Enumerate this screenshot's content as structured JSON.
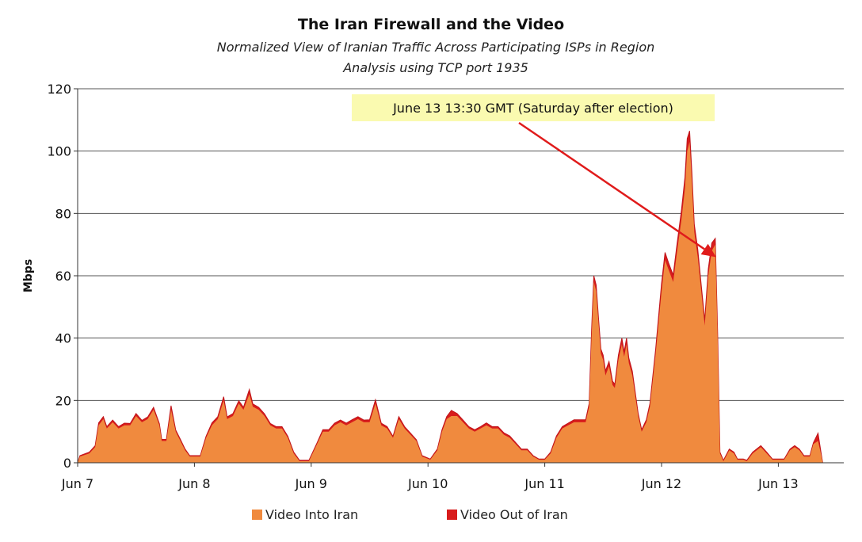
{
  "chart_data": {
    "type": "area",
    "title": "The Iran Firewall and the Video",
    "subtitle_lines": [
      "Normalized View of Iranian Traffic Across Participating ISPs in Region",
      "Analysis using TCP port 1935"
    ],
    "ylabel": "Mbps",
    "xlabel": "",
    "ylim": [
      0,
      120
    ],
    "yticks": [
      0,
      20,
      40,
      60,
      80,
      100,
      120
    ],
    "xlim": [
      7.0,
      13.38
    ],
    "xticks": [
      {
        "label": "Jun  7",
        "day": 7
      },
      {
        "label": "Jun  8",
        "day": 8
      },
      {
        "label": "Jun  9",
        "day": 9
      },
      {
        "label": "Jun 10",
        "day": 10
      },
      {
        "label": "Jun 11",
        "day": 11
      },
      {
        "label": "Jun 12",
        "day": 12
      },
      {
        "label": "Jun 13",
        "day": 13
      }
    ],
    "grid": true,
    "legend_position": "bottom",
    "series": [
      {
        "name": "Video Into Iran",
        "color": "#f08a3e",
        "points": [
          [
            7.0,
            0
          ],
          [
            7.02,
            2
          ],
          [
            7.1,
            3
          ],
          [
            7.15,
            5
          ],
          [
            7.18,
            12
          ],
          [
            7.22,
            14
          ],
          [
            7.25,
            11
          ],
          [
            7.3,
            13
          ],
          [
            7.35,
            11
          ],
          [
            7.4,
            12
          ],
          [
            7.45,
            12
          ],
          [
            7.5,
            15
          ],
          [
            7.55,
            13
          ],
          [
            7.6,
            14
          ],
          [
            7.65,
            17
          ],
          [
            7.7,
            12
          ],
          [
            7.72,
            7
          ],
          [
            7.76,
            7
          ],
          [
            7.8,
            17
          ],
          [
            7.84,
            10
          ],
          [
            7.88,
            7
          ],
          [
            7.92,
            4
          ],
          [
            7.96,
            2
          ],
          [
            8.05,
            2
          ],
          [
            8.1,
            8
          ],
          [
            8.15,
            12
          ],
          [
            8.2,
            14
          ],
          [
            8.25,
            20
          ],
          [
            8.28,
            14
          ],
          [
            8.33,
            15
          ],
          [
            8.38,
            19
          ],
          [
            8.42,
            17
          ],
          [
            8.47,
            22
          ],
          [
            8.5,
            18
          ],
          [
            8.55,
            17
          ],
          [
            8.6,
            15
          ],
          [
            8.65,
            12
          ],
          [
            8.7,
            11
          ],
          [
            8.75,
            11
          ],
          [
            8.8,
            8
          ],
          [
            8.85,
            3
          ],
          [
            8.9,
            0.5
          ],
          [
            8.98,
            0.5
          ],
          [
            9.05,
            6
          ],
          [
            9.1,
            10
          ],
          [
            9.15,
            10
          ],
          [
            9.2,
            12
          ],
          [
            9.25,
            13
          ],
          [
            9.3,
            12
          ],
          [
            9.35,
            13
          ],
          [
            9.4,
            14
          ],
          [
            9.45,
            13
          ],
          [
            9.5,
            13
          ],
          [
            9.55,
            19
          ],
          [
            9.6,
            12
          ],
          [
            9.65,
            11
          ],
          [
            9.7,
            8
          ],
          [
            9.75,
            14
          ],
          [
            9.8,
            11
          ],
          [
            9.85,
            9
          ],
          [
            9.9,
            7
          ],
          [
            9.95,
            2
          ],
          [
            10.02,
            1
          ],
          [
            10.08,
            4
          ],
          [
            10.12,
            10
          ],
          [
            10.16,
            14
          ],
          [
            10.2,
            15
          ],
          [
            10.25,
            15
          ],
          [
            10.3,
            13
          ],
          [
            10.35,
            11
          ],
          [
            10.4,
            10
          ],
          [
            10.45,
            11
          ],
          [
            10.5,
            12
          ],
          [
            10.55,
            11
          ],
          [
            10.6,
            11
          ],
          [
            10.65,
            9
          ],
          [
            10.7,
            8
          ],
          [
            10.75,
            6
          ],
          [
            10.8,
            4
          ],
          [
            10.85,
            4
          ],
          [
            10.9,
            2
          ],
          [
            10.95,
            1
          ],
          [
            11.0,
            1
          ],
          [
            11.05,
            3
          ],
          [
            11.1,
            8
          ],
          [
            11.15,
            11
          ],
          [
            11.2,
            12
          ],
          [
            11.25,
            13
          ],
          [
            11.3,
            13
          ],
          [
            11.35,
            13
          ],
          [
            11.38,
            18
          ],
          [
            11.4,
            40
          ],
          [
            11.42,
            58
          ],
          [
            11.44,
            55
          ],
          [
            11.46,
            45
          ],
          [
            11.48,
            35
          ],
          [
            11.5,
            33
          ],
          [
            11.52,
            28
          ],
          [
            11.55,
            31
          ],
          [
            11.58,
            25
          ],
          [
            11.6,
            24
          ],
          [
            11.63,
            33
          ],
          [
            11.66,
            38
          ],
          [
            11.68,
            34
          ],
          [
            11.7,
            38
          ],
          [
            11.72,
            32
          ],
          [
            11.75,
            28
          ],
          [
            11.8,
            15
          ],
          [
            11.83,
            10
          ],
          [
            11.87,
            13
          ],
          [
            11.9,
            18
          ],
          [
            11.95,
            35
          ],
          [
            12.0,
            55
          ],
          [
            12.03,
            65
          ],
          [
            12.06,
            62
          ],
          [
            12.1,
            58
          ],
          [
            12.13,
            67
          ],
          [
            12.17,
            78
          ],
          [
            12.2,
            88
          ],
          [
            12.22,
            100
          ],
          [
            12.24,
            103
          ],
          [
            12.26,
            90
          ],
          [
            12.28,
            74
          ],
          [
            12.31,
            66
          ],
          [
            12.34,
            55
          ],
          [
            12.37,
            44
          ],
          [
            12.4,
            60
          ],
          [
            12.43,
            68
          ],
          [
            12.46,
            70
          ],
          [
            12.48,
            40
          ],
          [
            12.5,
            3
          ],
          [
            12.53,
            0.5
          ],
          [
            12.58,
            4
          ],
          [
            12.62,
            3
          ],
          [
            12.65,
            1
          ],
          [
            12.7,
            1
          ],
          [
            12.73,
            0.5
          ],
          [
            12.78,
            3
          ],
          [
            12.85,
            5
          ],
          [
            12.9,
            3
          ],
          [
            12.95,
            1
          ],
          [
            13.0,
            1
          ],
          [
            13.05,
            1
          ],
          [
            13.1,
            4
          ],
          [
            13.14,
            5
          ],
          [
            13.18,
            4
          ],
          [
            13.22,
            2
          ],
          [
            13.27,
            2
          ],
          [
            13.3,
            6
          ],
          [
            13.34,
            7
          ],
          [
            13.37,
            2
          ],
          [
            13.38,
            0
          ]
        ]
      },
      {
        "name": "Video Out of Iran",
        "color": "#d81c1c",
        "points": [
          [
            7.0,
            0
          ],
          [
            7.02,
            2.3
          ],
          [
            7.1,
            3.4
          ],
          [
            7.15,
            5.5
          ],
          [
            7.18,
            12.8
          ],
          [
            7.22,
            14.8
          ],
          [
            7.25,
            11.6
          ],
          [
            7.3,
            13.7
          ],
          [
            7.35,
            11.6
          ],
          [
            7.4,
            12.7
          ],
          [
            7.45,
            12.6
          ],
          [
            7.5,
            15.8
          ],
          [
            7.55,
            13.6
          ],
          [
            7.6,
            14.7
          ],
          [
            7.65,
            17.8
          ],
          [
            7.7,
            12.5
          ],
          [
            7.72,
            7.5
          ],
          [
            7.76,
            7.5
          ],
          [
            7.8,
            18.3
          ],
          [
            7.84,
            10.5
          ],
          [
            7.88,
            7.5
          ],
          [
            7.92,
            4.4
          ],
          [
            7.96,
            2.3
          ],
          [
            8.05,
            2.3
          ],
          [
            8.1,
            8.5
          ],
          [
            8.15,
            12.8
          ],
          [
            8.2,
            14.8
          ],
          [
            8.25,
            21.2
          ],
          [
            8.28,
            14.7
          ],
          [
            8.33,
            15.8
          ],
          [
            8.38,
            19.9
          ],
          [
            8.42,
            17.8
          ],
          [
            8.47,
            23.5
          ],
          [
            8.5,
            18.9
          ],
          [
            8.55,
            17.8
          ],
          [
            8.6,
            15.7
          ],
          [
            8.65,
            12.6
          ],
          [
            8.7,
            11.6
          ],
          [
            8.75,
            11.6
          ],
          [
            8.8,
            8.5
          ],
          [
            8.85,
            3.4
          ],
          [
            8.9,
            0.8
          ],
          [
            8.98,
            0.8
          ],
          [
            9.05,
            6.4
          ],
          [
            9.1,
            10.6
          ],
          [
            9.15,
            10.6
          ],
          [
            9.2,
            12.7
          ],
          [
            9.25,
            13.7
          ],
          [
            9.3,
            12.7
          ],
          [
            9.35,
            13.8
          ],
          [
            9.4,
            14.8
          ],
          [
            9.45,
            13.7
          ],
          [
            9.5,
            13.8
          ],
          [
            9.55,
            20.2
          ],
          [
            9.6,
            12.7
          ],
          [
            9.65,
            11.6
          ],
          [
            9.7,
            8.5
          ],
          [
            9.75,
            14.8
          ],
          [
            9.8,
            11.6
          ],
          [
            9.85,
            9.5
          ],
          [
            9.9,
            7.4
          ],
          [
            9.95,
            2.3
          ],
          [
            10.02,
            1.2
          ],
          [
            10.08,
            4.4
          ],
          [
            10.12,
            10.6
          ],
          [
            10.16,
            14.8
          ],
          [
            10.2,
            16.8
          ],
          [
            10.25,
            15.8
          ],
          [
            10.3,
            13.7
          ],
          [
            10.35,
            11.6
          ],
          [
            10.4,
            10.6
          ],
          [
            10.45,
            11.6
          ],
          [
            10.5,
            12.8
          ],
          [
            10.55,
            11.6
          ],
          [
            10.6,
            11.6
          ],
          [
            10.65,
            9.6
          ],
          [
            10.7,
            8.6
          ],
          [
            10.75,
            6.5
          ],
          [
            10.8,
            4.4
          ],
          [
            10.85,
            4.4
          ],
          [
            10.9,
            2.3
          ],
          [
            10.95,
            1.2
          ],
          [
            11.0,
            1.2
          ],
          [
            11.05,
            3.4
          ],
          [
            11.1,
            8.6
          ],
          [
            11.15,
            11.6
          ],
          [
            11.2,
            12.7
          ],
          [
            11.25,
            13.8
          ],
          [
            11.3,
            13.8
          ],
          [
            11.35,
            13.8
          ],
          [
            11.38,
            19.0
          ],
          [
            11.4,
            42.0
          ],
          [
            11.42,
            60.0
          ],
          [
            11.44,
            57.0
          ],
          [
            11.46,
            46.5
          ],
          [
            11.48,
            36.5
          ],
          [
            11.5,
            34.5
          ],
          [
            11.52,
            29.5
          ],
          [
            11.55,
            32.5
          ],
          [
            11.58,
            26.2
          ],
          [
            11.6,
            25.2
          ],
          [
            11.63,
            34.5
          ],
          [
            11.66,
            40.0
          ],
          [
            11.68,
            35.6
          ],
          [
            11.7,
            40.0
          ],
          [
            11.72,
            33.6
          ],
          [
            11.75,
            29.4
          ],
          [
            11.8,
            15.8
          ],
          [
            11.83,
            10.6
          ],
          [
            11.87,
            13.8
          ],
          [
            11.9,
            19.0
          ],
          [
            11.95,
            36.6
          ],
          [
            12.0,
            57.5
          ],
          [
            12.03,
            67.5
          ],
          [
            12.06,
            64.2
          ],
          [
            12.1,
            60.2
          ],
          [
            12.13,
            69.5
          ],
          [
            12.17,
            81.0
          ],
          [
            12.2,
            91.5
          ],
          [
            12.22,
            104.0
          ],
          [
            12.24,
            106.5
          ],
          [
            12.26,
            93.0
          ],
          [
            12.28,
            76.5
          ],
          [
            12.31,
            68.5
          ],
          [
            12.34,
            57.0
          ],
          [
            12.37,
            45.8
          ],
          [
            12.4,
            62.2
          ],
          [
            12.43,
            70.5
          ],
          [
            12.46,
            72.0
          ],
          [
            12.48,
            41.5
          ],
          [
            12.5,
            3.4
          ],
          [
            12.53,
            0.8
          ],
          [
            12.58,
            4.4
          ],
          [
            12.62,
            3.4
          ],
          [
            12.65,
            1.2
          ],
          [
            12.7,
            1.2
          ],
          [
            12.73,
            0.8
          ],
          [
            12.78,
            3.4
          ],
          [
            12.85,
            5.5
          ],
          [
            12.9,
            3.4
          ],
          [
            12.95,
            1.2
          ],
          [
            13.0,
            1.2
          ],
          [
            13.05,
            1.2
          ],
          [
            13.1,
            4.4
          ],
          [
            13.14,
            5.5
          ],
          [
            13.18,
            4.4
          ],
          [
            13.22,
            2.3
          ],
          [
            13.27,
            2.3
          ],
          [
            13.3,
            6.4
          ],
          [
            13.34,
            9.5
          ],
          [
            13.37,
            2.3
          ],
          [
            13.38,
            0
          ]
        ]
      }
    ],
    "annotation": {
      "text": "June 13 13:30 GMT (Saturday after election)",
      "arrow_color": "#e01b1b",
      "box_color": "#fafab0",
      "points_to": {
        "day": 12.4,
        "value": 68
      }
    }
  }
}
